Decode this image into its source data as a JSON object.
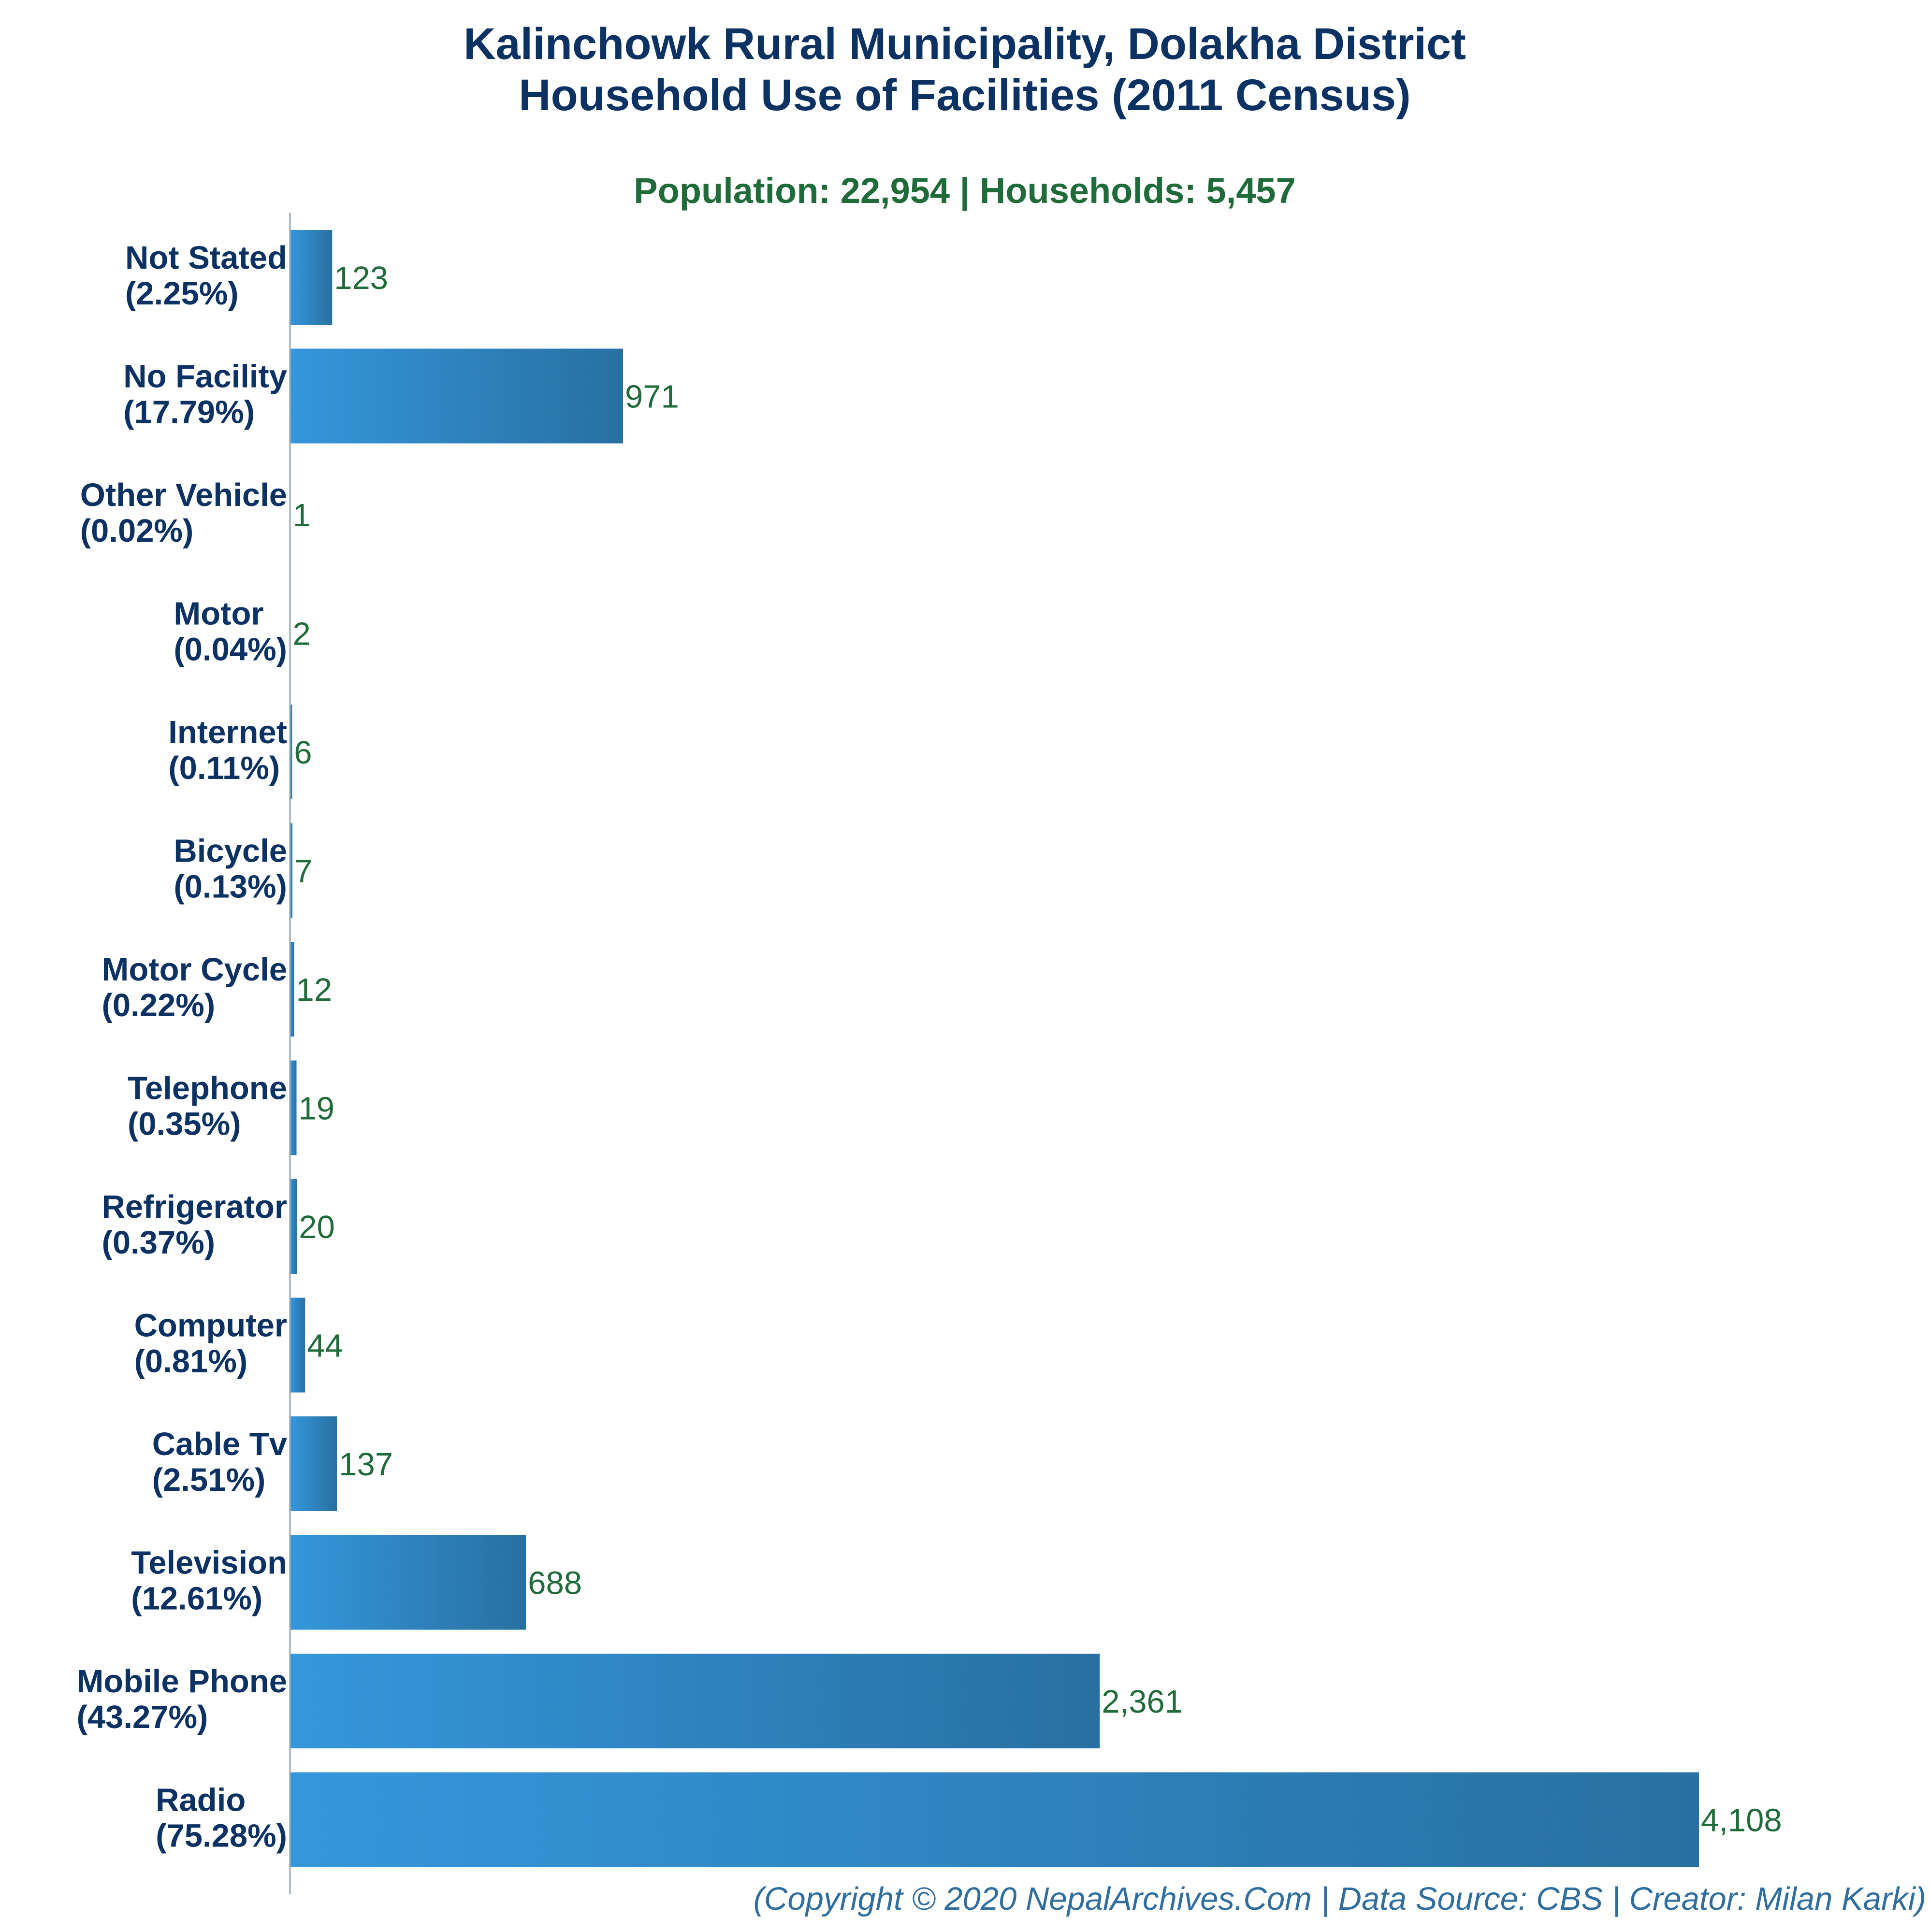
{
  "chart_data": {
    "type": "bar",
    "orientation": "horizontal",
    "title_lines": [
      "Kalinchowk Rural Municipality, Dolakha District",
      "Household Use of Facilities (2011 Census)"
    ],
    "subtitle": "Population: 22,954 | Households: 5,457",
    "categories": [
      {
        "name": "Not Stated",
        "pct_label": "(2.25%)",
        "value": 123,
        "value_label": "123"
      },
      {
        "name": "No Facility",
        "pct_label": "(17.79%)",
        "value": 971,
        "value_label": "971"
      },
      {
        "name": "Other Vehicle",
        "pct_label": "(0.02%)",
        "value": 1,
        "value_label": "1"
      },
      {
        "name": "Motor",
        "pct_label": "(0.04%)",
        "value": 2,
        "value_label": "2"
      },
      {
        "name": "Internet",
        "pct_label": "(0.11%)",
        "value": 6,
        "value_label": "6"
      },
      {
        "name": "Bicycle",
        "pct_label": "(0.13%)",
        "value": 7,
        "value_label": "7"
      },
      {
        "name": "Motor Cycle",
        "pct_label": "(0.22%)",
        "value": 12,
        "value_label": "12"
      },
      {
        "name": "Telephone",
        "pct_label": "(0.35%)",
        "value": 19,
        "value_label": "19"
      },
      {
        "name": "Refrigerator",
        "pct_label": "(0.37%)",
        "value": 20,
        "value_label": "20"
      },
      {
        "name": "Computer",
        "pct_label": "(0.81%)",
        "value": 44,
        "value_label": "44"
      },
      {
        "name": "Cable Tv",
        "pct_label": "(2.51%)",
        "value": 137,
        "value_label": "137"
      },
      {
        "name": "Television",
        "pct_label": "(12.61%)",
        "value": 688,
        "value_label": "688"
      },
      {
        "name": "Mobile Phone",
        "pct_label": "(43.27%)",
        "value": 2361,
        "value_label": "2,361"
      },
      {
        "name": "Radio",
        "pct_label": "(75.28%)",
        "value": 4108,
        "value_label": "4,108"
      }
    ],
    "xlim": [
      0,
      4108
    ],
    "grid": false,
    "legend": "none",
    "xlabel": "",
    "ylabel": ""
  },
  "footer": "(Copyright © 2020 NepalArchives.Com | Data Source: CBS | Creator: Milan Karki)",
  "colors": {
    "title": "#0b3263",
    "subtitle": "#1f6b3a",
    "category_label": "#0b3263",
    "value_label": "#1f6b3a",
    "bar_start": "#3597dc",
    "bar_end": "#2870a1",
    "axis": "#9aa6b2",
    "footer": "#2f6e9e"
  }
}
